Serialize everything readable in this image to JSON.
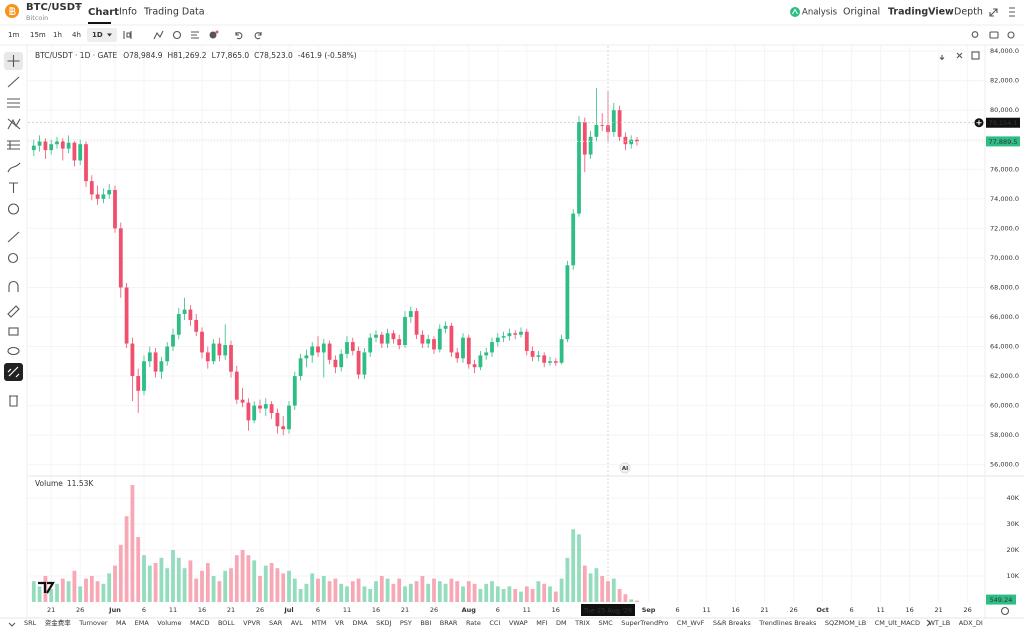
{
  "header": {
    "symbol": "BTC/USDT",
    "name": "Bitcoin",
    "tabs": [
      "Chart",
      "Info",
      "Trading Data"
    ],
    "views": [
      "Analysis",
      "Original",
      "TradingView",
      "Depth"
    ]
  },
  "intervals": [
    "1m",
    "15m",
    "1h",
    "4h",
    "1D"
  ],
  "indicators": [
    "SRL",
    "资金费率",
    "Turnover",
    "MA",
    "EMA",
    "Volume",
    "MACD",
    "BOLL",
    "VPVR",
    "SAR",
    "AVL",
    "MTM",
    "VR",
    "DMA",
    "SKDJ",
    "PSY",
    "BBI",
    "BRAR",
    "Rate",
    "CCI",
    "VWAP",
    "MFI",
    "DM",
    "TRIX",
    "SMC",
    "SuperTrendPro",
    "CM_WvF",
    "S&R Breaks",
    "Trendlines Breaks",
    "SQZMOM_LB",
    "CM_Ult_MACD",
    "WT_LB",
    "ADX_DI"
  ],
  "badge": "AI",
  "chart_data": {
    "type": "candlestick",
    "title": "BTC/USDT · 1D · GATE",
    "legend": [
      "O78,984.9",
      "H81,269.2",
      "L77,865.0",
      "C78,523.0",
      "-461.9 (-0.58%)"
    ],
    "up_color": "#2ebd85",
    "down_color": "#f0506e",
    "x": [
      "2026-05-18",
      "2026-05-19",
      "2026-05-20",
      "2026-05-21",
      "2026-05-22",
      "2026-05-23",
      "2026-05-24",
      "2026-05-25",
      "2026-05-26",
      "2026-05-27",
      "2026-05-28",
      "2026-05-29",
      "2026-05-30",
      "2026-05-31",
      "2026-06-01",
      "2026-06-02",
      "2026-06-03",
      "2026-06-04",
      "2026-06-05",
      "2026-06-06",
      "2026-06-07",
      "2026-06-08",
      "2026-06-09",
      "2026-06-10",
      "2026-06-11",
      "2026-06-12",
      "2026-06-13",
      "2026-06-14",
      "2026-06-15",
      "2026-06-16",
      "2026-06-17",
      "2026-06-18",
      "2026-06-19",
      "2026-06-20",
      "2026-06-21",
      "2026-06-22",
      "2026-06-23",
      "2026-06-24",
      "2026-06-25",
      "2026-06-26",
      "2026-06-27",
      "2026-06-28",
      "2026-06-29",
      "2026-06-30",
      "2026-07-01",
      "2026-07-02",
      "2026-07-03",
      "2026-07-04",
      "2026-07-05",
      "2026-07-06",
      "2026-07-07",
      "2026-07-08",
      "2026-07-09",
      "2026-07-10",
      "2026-07-11",
      "2026-07-12",
      "2026-07-13",
      "2026-07-14",
      "2026-07-15",
      "2026-07-16",
      "2026-07-17",
      "2026-07-18",
      "2026-07-19",
      "2026-07-20",
      "2026-07-21",
      "2026-07-22",
      "2026-07-23",
      "2026-07-24",
      "2026-07-25",
      "2026-07-26",
      "2026-07-27",
      "2026-07-28",
      "2026-07-29",
      "2026-07-30",
      "2026-07-31",
      "2026-08-01",
      "2026-08-02",
      "2026-08-03",
      "2026-08-04",
      "2026-08-05",
      "2026-08-06",
      "2026-08-07",
      "2026-08-08",
      "2026-08-09",
      "2026-08-10",
      "2026-08-11",
      "2026-08-12",
      "2026-08-13",
      "2026-08-14",
      "2026-08-15",
      "2026-08-16",
      "2026-08-17",
      "2026-08-18",
      "2026-08-19",
      "2026-08-20",
      "2026-08-21",
      "2026-08-22",
      "2026-08-23",
      "2026-08-24",
      "2026-08-25",
      "2026-08-26",
      "2026-08-27",
      "2026-08-28",
      "2026-08-29",
      "2026-08-30"
    ],
    "ohlc": [
      [
        77300,
        78000,
        76900,
        77600
      ],
      [
        77600,
        78300,
        77200,
        77900
      ],
      [
        77900,
        78100,
        76700,
        77300
      ],
      [
        77300,
        78000,
        77000,
        77700
      ],
      [
        77700,
        78200,
        77400,
        77900
      ],
      [
        77900,
        78100,
        76600,
        77400
      ],
      [
        77400,
        78300,
        77100,
        77800
      ],
      [
        77800,
        77900,
        76200,
        76600
      ],
      [
        76600,
        78000,
        76300,
        77700
      ],
      [
        77700,
        77900,
        74800,
        75200
      ],
      [
        75200,
        75600,
        73900,
        74300
      ],
      [
        74300,
        74900,
        73600,
        74000
      ],
      [
        74000,
        74700,
        73700,
        74300
      ],
      [
        74300,
        75000,
        74000,
        74600
      ],
      [
        74600,
        74900,
        71700,
        72000
      ],
      [
        72000,
        72400,
        67300,
        68000
      ],
      [
        68000,
        68300,
        63900,
        64200
      ],
      [
        64200,
        64600,
        60300,
        62000
      ],
      [
        62000,
        62500,
        59500,
        61000
      ],
      [
        61000,
        63400,
        60700,
        63000
      ],
      [
        63000,
        64000,
        62600,
        63600
      ],
      [
        63600,
        63900,
        61900,
        62300
      ],
      [
        62300,
        63300,
        61800,
        63000
      ],
      [
        63000,
        64300,
        62700,
        64000
      ],
      [
        64000,
        65200,
        63700,
        64800
      ],
      [
        64800,
        66600,
        64500,
        66200
      ],
      [
        66200,
        67300,
        65800,
        66500
      ],
      [
        66500,
        66800,
        65400,
        65800
      ],
      [
        65800,
        66200,
        64700,
        65000
      ],
      [
        65000,
        65300,
        63200,
        63600
      ],
      [
        63600,
        64000,
        62500,
        63000
      ],
      [
        63000,
        64500,
        62800,
        64200
      ],
      [
        64200,
        64600,
        63000,
        63400
      ],
      [
        63400,
        65500,
        63100,
        64100
      ],
      [
        64100,
        64400,
        61900,
        62300
      ],
      [
        62300,
        62700,
        60100,
        60400
      ],
      [
        60400,
        61200,
        59900,
        60200
      ],
      [
        60200,
        60500,
        58300,
        59000
      ],
      [
        59000,
        60300,
        58800,
        60000
      ],
      [
        60000,
        60400,
        59500,
        59800
      ],
      [
        59800,
        60500,
        59300,
        60100
      ],
      [
        60100,
        60300,
        59100,
        59500
      ],
      [
        59500,
        59800,
        58100,
        58600
      ],
      [
        58600,
        59300,
        58000,
        58400
      ],
      [
        58400,
        60300,
        58100,
        60000
      ],
      [
        60000,
        62300,
        59700,
        62000
      ],
      [
        62000,
        63500,
        61700,
        63200
      ],
      [
        63200,
        63800,
        62600,
        63400
      ],
      [
        63400,
        64300,
        62900,
        64000
      ],
      [
        64000,
        64700,
        63300,
        63600
      ],
      [
        63600,
        64500,
        61900,
        64200
      ],
      [
        64200,
        64400,
        62800,
        63100
      ],
      [
        63100,
        63400,
        62200,
        62600
      ],
      [
        62600,
        63800,
        62300,
        63500
      ],
      [
        63500,
        64700,
        63200,
        64300
      ],
      [
        64300,
        64600,
        63400,
        63700
      ],
      [
        63700,
        64000,
        61800,
        62100
      ],
      [
        62100,
        63900,
        61800,
        63600
      ],
      [
        63600,
        64900,
        63300,
        64600
      ],
      [
        64600,
        65100,
        64300,
        64800
      ],
      [
        64800,
        65000,
        63900,
        64200
      ],
      [
        64200,
        65200,
        63900,
        64900
      ],
      [
        64900,
        65100,
        64200,
        64500
      ],
      [
        64500,
        64800,
        63800,
        64100
      ],
      [
        64100,
        66400,
        63900,
        66000
      ],
      [
        66000,
        66700,
        65600,
        66400
      ],
      [
        66400,
        66600,
        64500,
        64800
      ],
      [
        64800,
        65100,
        63900,
        64200
      ],
      [
        64200,
        64800,
        63900,
        64500
      ],
      [
        64500,
        64700,
        63500,
        63800
      ],
      [
        63800,
        65500,
        63600,
        65200
      ],
      [
        65200,
        65700,
        64900,
        65400
      ],
      [
        65400,
        65600,
        63300,
        63600
      ],
      [
        63600,
        63900,
        62900,
        63200
      ],
      [
        63200,
        64900,
        62900,
        64600
      ],
      [
        64600,
        64800,
        62500,
        62800
      ],
      [
        62800,
        63100,
        62200,
        62600
      ],
      [
        62600,
        63700,
        62400,
        63400
      ],
      [
        63400,
        63900,
        63100,
        63600
      ],
      [
        63600,
        64600,
        63300,
        64300
      ],
      [
        64300,
        64900,
        64000,
        64600
      ],
      [
        64600,
        65000,
        64300,
        64700
      ],
      [
        64700,
        65200,
        64400,
        64900
      ],
      [
        64900,
        65100,
        64500,
        64800
      ],
      [
        64800,
        65300,
        64600,
        65000
      ],
      [
        65000,
        65200,
        63400,
        63700
      ],
      [
        63700,
        64000,
        63000,
        63300
      ],
      [
        63300,
        63700,
        63000,
        63400
      ],
      [
        63400,
        63600,
        62600,
        62900
      ],
      [
        62900,
        63300,
        62700,
        63000
      ],
      [
        63000,
        63200,
        62700,
        62900
      ],
      [
        62900,
        64800,
        62800,
        64500
      ],
      [
        64500,
        69800,
        64300,
        69500
      ],
      [
        69500,
        73300,
        69200,
        73000
      ],
      [
        73000,
        79600,
        72800,
        79200
      ],
      [
        79200,
        79500,
        75800,
        77000
      ],
      [
        77000,
        78600,
        76700,
        78200
      ],
      [
        78200,
        81500,
        77900,
        79000
      ],
      [
        79000,
        79800,
        78600,
        78984.9
      ],
      [
        78984.9,
        81269.2,
        77865.0,
        78523.0
      ],
      [
        78523,
        80500,
        78200,
        80000
      ],
      [
        80000,
        80300,
        77900,
        78200
      ],
      [
        78200,
        78500,
        77300,
        77700
      ],
      [
        77700,
        78300,
        77400,
        78000
      ],
      [
        78000,
        78200,
        77600,
        77889.5
      ]
    ],
    "xlim": [
      "2026-05-17",
      "2026-10-29"
    ],
    "xticks": [
      {
        "value": "2026-05-21",
        "label": "21"
      },
      {
        "value": "2026-05-26",
        "label": "26"
      },
      {
        "value": "2026-06-01",
        "label": "Jun"
      },
      {
        "value": "2026-06-06",
        "label": "6"
      },
      {
        "value": "2026-06-11",
        "label": "11"
      },
      {
        "value": "2026-06-16",
        "label": "16"
      },
      {
        "value": "2026-06-21",
        "label": "21"
      },
      {
        "value": "2026-06-26",
        "label": "26"
      },
      {
        "value": "2026-07-01",
        "label": "Jul"
      },
      {
        "value": "2026-07-06",
        "label": "6"
      },
      {
        "value": "2026-07-11",
        "label": "11"
      },
      {
        "value": "2026-07-16",
        "label": "16"
      },
      {
        "value": "2026-07-21",
        "label": "21"
      },
      {
        "value": "2026-07-26",
        "label": "26"
      },
      {
        "value": "2026-08-01",
        "label": "Aug"
      },
      {
        "value": "2026-08-06",
        "label": "6"
      },
      {
        "value": "2026-08-11",
        "label": "11"
      },
      {
        "value": "2026-08-16",
        "label": "16"
      },
      {
        "value": "2026-09-01",
        "label": "Sep"
      },
      {
        "value": "2026-09-06",
        "label": "6"
      },
      {
        "value": "2026-09-11",
        "label": "11"
      },
      {
        "value": "2026-09-16",
        "label": "16"
      },
      {
        "value": "2026-09-21",
        "label": "21"
      },
      {
        "value": "2026-09-26",
        "label": "26"
      },
      {
        "value": "2026-10-01",
        "label": "Oct"
      },
      {
        "value": "2026-10-06",
        "label": "6"
      },
      {
        "value": "2026-10-11",
        "label": "11"
      },
      {
        "value": "2026-10-16",
        "label": "16"
      },
      {
        "value": "2026-10-21",
        "label": "21"
      },
      {
        "value": "2026-10-26",
        "label": "26"
      }
    ],
    "ylim": [
      55300,
      84350
    ],
    "yticks": [
      {
        "value": 56000,
        "label": "56,000.0"
      },
      {
        "value": 58000,
        "label": "58,000.0"
      },
      {
        "value": 60000,
        "label": "60,000.0"
      },
      {
        "value": 62000,
        "label": "62,000.0"
      },
      {
        "value": 64000,
        "label": "64,000.0"
      },
      {
        "value": 66000,
        "label": "66,000.0"
      },
      {
        "value": 68000,
        "label": "68,000.0"
      },
      {
        "value": 70000,
        "label": "70,000.0"
      },
      {
        "value": 72000,
        "label": "72,000.0"
      },
      {
        "value": 74000,
        "label": "74,000.0"
      },
      {
        "value": 76000,
        "label": "76,000.0"
      },
      {
        "value": 78000,
        "label": "78,000.0"
      },
      {
        "value": 80000,
        "label": "80,000.0"
      },
      {
        "value": 82000,
        "label": "82,000.0"
      },
      {
        "value": 84000,
        "label": "84,000.0"
      }
    ],
    "grid": true,
    "last_price": {
      "value": 77889.5,
      "label": "77,889.5"
    },
    "crosshair": {
      "date": "2026-08-25",
      "date_label": "Tue 25 Aug '26",
      "price": 79154.1,
      "price_label": "79,154.1"
    },
    "volume": {
      "title": "Volume",
      "value_label": "11.53K",
      "up_color": "#93dcbd",
      "down_color": "#f8a7b4",
      "values": [
        8000,
        6000,
        10000,
        5000,
        7000,
        9000,
        8000,
        12000,
        6000,
        9000,
        10000,
        8000,
        7000,
        11000,
        14000,
        22000,
        33000,
        45000,
        25000,
        18000,
        14000,
        15000,
        17000,
        13000,
        20000,
        17000,
        13000,
        16000,
        9000,
        12000,
        15000,
        10000,
        8000,
        12000,
        13000,
        18000,
        20000,
        18000,
        16000,
        10000,
        14000,
        15000,
        13000,
        11000,
        12000,
        9000,
        5000,
        7000,
        11000,
        9000,
        10000,
        8000,
        9000,
        7000,
        6000,
        8000,
        9000,
        6000,
        5000,
        8000,
        10000,
        9000,
        7000,
        9000,
        6000,
        7000,
        8000,
        10000,
        7000,
        9000,
        8000,
        7000,
        9000,
        8000,
        6000,
        8000,
        7000,
        5000,
        7000,
        8000,
        6000,
        5000,
        6000,
        5000,
        4000,
        6000,
        5000,
        8000,
        7000,
        6000,
        4000,
        9000,
        17000,
        28000,
        26000,
        14000,
        11000,
        13000,
        10000,
        8000,
        9000,
        5000,
        3000,
        1000,
        549.24
      ],
      "last_label": "549.24",
      "ylim": [
        0,
        47700
      ],
      "yticks": [
        {
          "value": 10000,
          "label": "10K"
        },
        {
          "value": 20000,
          "label": "20K"
        },
        {
          "value": 30000,
          "label": "30K"
        },
        {
          "value": 40000,
          "label": "40K"
        }
      ]
    }
  }
}
